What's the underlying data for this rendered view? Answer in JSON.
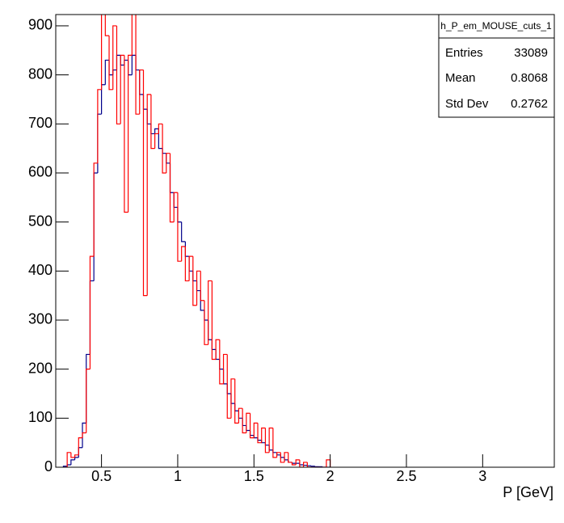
{
  "chart_data": {
    "type": "histogram",
    "stats": {
      "title": "h_P_em_MOUSE_cuts_1",
      "rows": [
        [
          "Entries",
          "33089"
        ],
        [
          "Mean",
          "0.8068"
        ],
        [
          "Std Dev",
          "0.2762"
        ]
      ]
    },
    "x_label": "P [GeV]",
    "bins": [
      0.25,
      0.275,
      0.3,
      0.325,
      0.35,
      0.375,
      0.4,
      0.425,
      0.45,
      0.475,
      0.5,
      0.525,
      0.55,
      0.575,
      0.6,
      0.625,
      0.65,
      0.675,
      0.7,
      0.725,
      0.75,
      0.775,
      0.8,
      0.825,
      0.85,
      0.875,
      0.9,
      0.925,
      0.95,
      0.975,
      1.0,
      1.025,
      1.05,
      1.075,
      1.1,
      1.125,
      1.15,
      1.175,
      1.2,
      1.225,
      1.25,
      1.275,
      1.3,
      1.325,
      1.35,
      1.375,
      1.4,
      1.425,
      1.45,
      1.475,
      1.5,
      1.525,
      1.55,
      1.575,
      1.6,
      1.625,
      1.65,
      1.675,
      1.7,
      1.725,
      1.75,
      1.775,
      1.8,
      1.825,
      1.85,
      1.875,
      1.9,
      1.925,
      1.95,
      1.975,
      2.0
    ],
    "series": [
      {
        "color": "#00008b",
        "values": [
          2,
          5,
          15,
          20,
          40,
          90,
          230,
          380,
          600,
          720,
          780,
          830,
          800,
          810,
          840,
          820,
          830,
          800,
          840,
          810,
          760,
          730,
          700,
          680,
          690,
          650,
          640,
          620,
          560,
          530,
          500,
          460,
          430,
          400,
          380,
          360,
          320,
          300,
          260,
          240,
          220,
          200,
          170,
          150,
          130,
          115,
          100,
          85,
          75,
          65,
          60,
          55,
          50,
          45,
          35,
          30,
          25,
          20,
          15,
          10,
          8,
          8,
          5,
          4,
          3,
          2,
          1,
          1,
          0,
          0
        ]
      },
      {
        "color": "#ff0000",
        "values": [
          0,
          30,
          20,
          25,
          60,
          70,
          200,
          430,
          620,
          770,
          930,
          880,
          770,
          900,
          700,
          840,
          520,
          840,
          950,
          720,
          810,
          350,
          760,
          650,
          680,
          700,
          600,
          640,
          500,
          560,
          420,
          450,
          380,
          430,
          330,
          400,
          340,
          250,
          380,
          220,
          260,
          170,
          230,
          100,
          180,
          90,
          120,
          70,
          110,
          60,
          90,
          50,
          80,
          30,
          80,
          20,
          30,
          10,
          30,
          10,
          5,
          15,
          0,
          10,
          0,
          0,
          0,
          0,
          0,
          15
        ]
      }
    ],
    "xlim": [
      0.2,
      3.47
    ],
    "ylim": [
      0,
      923
    ],
    "xticks": [
      0.5,
      1,
      1.5,
      2,
      2.5,
      3
    ],
    "yticks": [
      0,
      100,
      200,
      300,
      400,
      500,
      600,
      700,
      800,
      900
    ]
  }
}
